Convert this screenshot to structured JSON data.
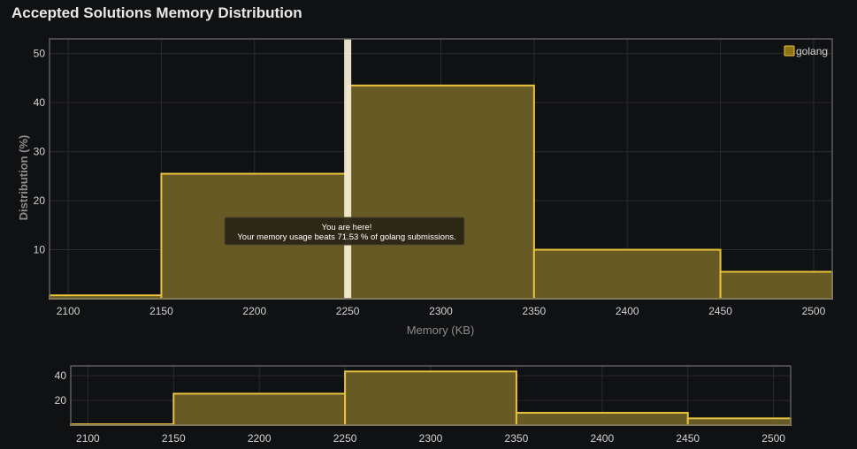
{
  "page": {
    "title": "Accepted Solutions Memory Distribution"
  },
  "chart_data": {
    "type": "bar",
    "title": "Accepted Solutions Memory Distribution",
    "xlabel": "Memory (KB)",
    "ylabel": "Distribution (%)",
    "xlim": [
      2090,
      2510
    ],
    "ylim": [
      0,
      53
    ],
    "x_ticks": [
      2100,
      2150,
      2200,
      2250,
      2300,
      2350,
      2400,
      2450,
      2500
    ],
    "y_ticks": [
      10,
      20,
      30,
      40,
      50
    ],
    "grid": true,
    "legend": {
      "position": "top-right",
      "entries": [
        "golang"
      ]
    },
    "series": [
      {
        "name": "golang",
        "bins": [
          {
            "x0": 2090,
            "x1": 2150,
            "value": 0.7
          },
          {
            "x0": 2150,
            "x1": 2250,
            "value": 25.5
          },
          {
            "x0": 2250,
            "x1": 2350,
            "value": 43.5
          },
          {
            "x0": 2350,
            "x1": 2450,
            "value": 10.0
          },
          {
            "x0": 2450,
            "x1": 2510,
            "value": 5.5
          }
        ]
      }
    ],
    "marker": {
      "x": 2250
    },
    "tooltip": {
      "line1": "You are here!",
      "line2": "Your memory usage beats 71.53 % of golang submissions."
    },
    "overview": {
      "y_ticks": [
        20,
        40
      ],
      "ylim": [
        0,
        48
      ]
    }
  },
  "colors": {
    "bar_fill": "#685a24",
    "bar_stroke": "#e8c33e",
    "marker": "#f3ead1",
    "grid": "#2a2b2d",
    "frame": "#5d5e60",
    "tick_text": "#d2d2d2",
    "axis_title": "#8c8c8c",
    "legend_swatch": "#8c7414",
    "tooltip_bg": "#2a2616",
    "tooltip_border": "#4b4531"
  }
}
